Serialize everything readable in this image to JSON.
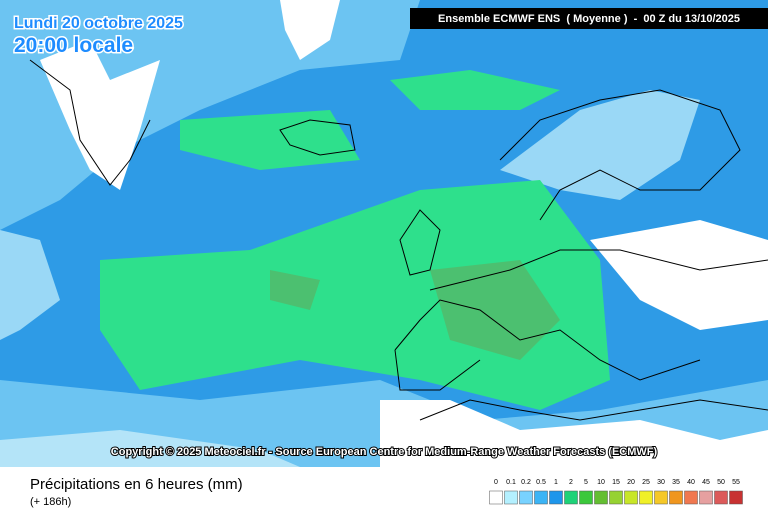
{
  "header": {
    "date": "Lundi 20 octobre 2025",
    "time": "20:00 locale",
    "model": "Ensemble ECMWF ENS  ( Moyenne )  -  00 Z du 13/10/2025"
  },
  "copyright": "Copyright © 2025 Meteociel.fr - Source European Centre for Medium-Range Weather Forecasts (ECMWF)",
  "footer": {
    "title": "Précipitations en 6 heures (mm)",
    "lead": "(+ 186h)"
  },
  "legend": {
    "labels": [
      "0",
      "0.1",
      "0.2",
      "0.5",
      "1",
      "2",
      "5",
      "10",
      "15",
      "20",
      "25",
      "30",
      "35",
      "40",
      "45",
      "50",
      "55"
    ],
    "colors": [
      "#ffffff",
      "#b4f0ff",
      "#78d2ff",
      "#3cb4f5",
      "#1e96eb",
      "#1ed278",
      "#3cc83c",
      "#64be32",
      "#96d232",
      "#c8e628",
      "#f0f028",
      "#f5c828",
      "#f0961e",
      "#f07850",
      "#e6a0a0",
      "#dc5a5a",
      "#c83232"
    ]
  }
}
